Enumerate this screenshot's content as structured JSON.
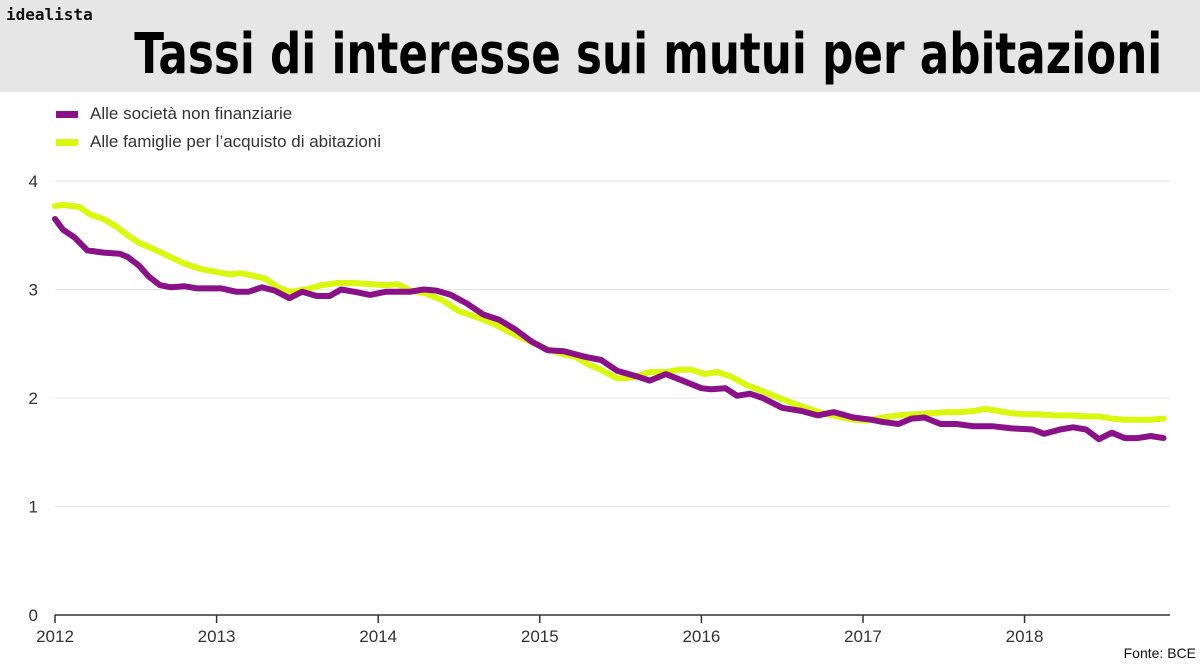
{
  "brand": "idealista",
  "title": "Tassi di interesse sui mutui per abitazioni",
  "source": "Fonte: BCE",
  "colors": {
    "series_1": "#8b1189",
    "series_2": "#d9f80e",
    "grid": "#e4e4e4",
    "axis": "#333333"
  },
  "chart_data": {
    "type": "line",
    "xlabel": "",
    "ylabel": "",
    "xlim": [
      2012,
      2018.9
    ],
    "ylim": [
      0,
      4
    ],
    "x_ticks": [
      2012,
      2013,
      2014,
      2015,
      2016,
      2017,
      2018
    ],
    "y_ticks": [
      0,
      1,
      2,
      3,
      4
    ],
    "grid": true,
    "legend_position": "top-left",
    "series": [
      {
        "name": "Alle società non finanziarie",
        "x": [
          2012.0,
          2012.05,
          2012.12,
          2012.2,
          2012.3,
          2012.4,
          2012.45,
          2012.52,
          2012.58,
          2012.65,
          2012.72,
          2012.8,
          2012.88,
          2012.96,
          2013.03,
          2013.12,
          2013.2,
          2013.28,
          2013.36,
          2013.45,
          2013.53,
          2013.62,
          2013.7,
          2013.77,
          2013.85,
          2013.95,
          2014.05,
          2014.12,
          2014.2,
          2014.28,
          2014.36,
          2014.45,
          2014.55,
          2014.65,
          2014.75,
          2014.85,
          2014.95,
          2015.05,
          2015.15,
          2015.28,
          2015.38,
          2015.48,
          2015.6,
          2015.68,
          2015.78,
          2015.9,
          2016.0,
          2016.06,
          2016.15,
          2016.22,
          2016.3,
          2016.38,
          2016.5,
          2016.62,
          2016.72,
          2016.82,
          2016.94,
          2017.05,
          2017.12,
          2017.22,
          2017.3,
          2017.38,
          2017.48,
          2017.58,
          2017.68,
          2017.8,
          2017.92,
          2018.05,
          2018.12,
          2018.22,
          2018.3,
          2018.38,
          2018.46,
          2018.54,
          2018.62,
          2018.7,
          2018.78,
          2018.86
        ],
        "values": [
          3.65,
          3.55,
          3.48,
          3.36,
          3.34,
          3.33,
          3.3,
          3.22,
          3.12,
          3.04,
          3.02,
          3.03,
          3.01,
          3.01,
          3.01,
          2.98,
          2.98,
          3.02,
          2.99,
          2.92,
          2.98,
          2.94,
          2.94,
          3.0,
          2.98,
          2.95,
          2.98,
          2.98,
          2.98,
          3.0,
          2.99,
          2.95,
          2.87,
          2.77,
          2.72,
          2.63,
          2.52,
          2.44,
          2.43,
          2.38,
          2.35,
          2.25,
          2.2,
          2.16,
          2.22,
          2.15,
          2.09,
          2.08,
          2.09,
          2.02,
          2.04,
          2.0,
          1.91,
          1.88,
          1.84,
          1.87,
          1.82,
          1.8,
          1.78,
          1.76,
          1.81,
          1.82,
          1.76,
          1.76,
          1.74,
          1.74,
          1.72,
          1.71,
          1.67,
          1.71,
          1.73,
          1.71,
          1.62,
          1.68,
          1.63,
          1.63,
          1.65,
          1.63
        ]
      },
      {
        "name": "Alle famiglie per l’acquisto di abitazioni",
        "x": [
          2012.0,
          2012.05,
          2012.15,
          2012.22,
          2012.3,
          2012.38,
          2012.45,
          2012.52,
          2012.6,
          2012.7,
          2012.8,
          2012.9,
          2013.0,
          2013.08,
          2013.15,
          2013.22,
          2013.3,
          2013.38,
          2013.45,
          2013.55,
          2013.65,
          2013.75,
          2013.85,
          2013.95,
          2014.05,
          2014.12,
          2014.2,
          2014.3,
          2014.4,
          2014.5,
          2014.62,
          2014.72,
          2014.82,
          2014.94,
          2015.05,
          2015.15,
          2015.22,
          2015.3,
          2015.38,
          2015.48,
          2015.58,
          2015.68,
          2015.78,
          2015.86,
          2015.94,
          2016.02,
          2016.1,
          2016.18,
          2016.28,
          2016.35,
          2016.45,
          2016.55,
          2016.65,
          2016.75,
          2016.84,
          2016.94,
          2017.02,
          2017.12,
          2017.22,
          2017.32,
          2017.42,
          2017.52,
          2017.6,
          2017.68,
          2017.76,
          2017.84,
          2017.92,
          2018.0,
          2018.08,
          2018.18,
          2018.28,
          2018.38,
          2018.46,
          2018.54,
          2018.62,
          2018.7,
          2018.78,
          2018.86
        ],
        "values": [
          3.77,
          3.78,
          3.76,
          3.69,
          3.65,
          3.58,
          3.5,
          3.43,
          3.38,
          3.31,
          3.24,
          3.19,
          3.16,
          3.14,
          3.15,
          3.13,
          3.1,
          3.02,
          2.98,
          3.0,
          3.04,
          3.06,
          3.06,
          3.05,
          3.04,
          3.05,
          2.99,
          2.96,
          2.9,
          2.8,
          2.74,
          2.68,
          2.6,
          2.52,
          2.45,
          2.4,
          2.38,
          2.31,
          2.26,
          2.18,
          2.19,
          2.24,
          2.24,
          2.26,
          2.26,
          2.22,
          2.24,
          2.2,
          2.12,
          2.08,
          2.02,
          1.96,
          1.91,
          1.86,
          1.83,
          1.8,
          1.79,
          1.82,
          1.84,
          1.85,
          1.86,
          1.87,
          1.87,
          1.88,
          1.9,
          1.88,
          1.86,
          1.85,
          1.85,
          1.84,
          1.84,
          1.83,
          1.83,
          1.81,
          1.8,
          1.8,
          1.8,
          1.81
        ]
      }
    ]
  }
}
